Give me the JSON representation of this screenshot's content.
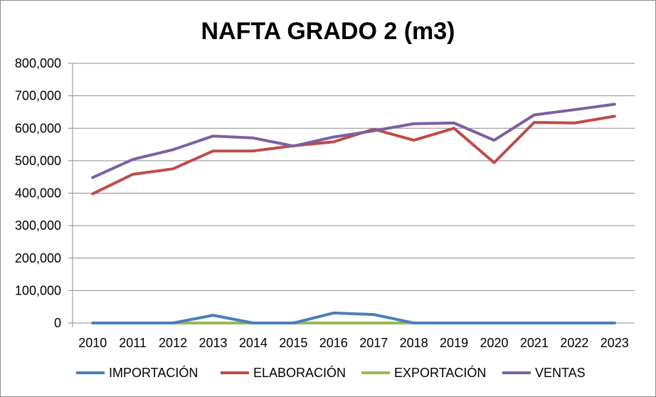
{
  "chart_data": {
    "type": "line",
    "title": "NAFTA GRADO 2 (m3)",
    "xlabel": "",
    "ylabel": "",
    "categories": [
      "2010",
      "2011",
      "2012",
      "2013",
      "2014",
      "2015",
      "2016",
      "2017",
      "2018",
      "2019",
      "2020",
      "2021",
      "2022",
      "2023"
    ],
    "ylim": [
      0,
      800000
    ],
    "yticks": [
      0,
      100000,
      200000,
      300000,
      400000,
      500000,
      600000,
      700000,
      800000
    ],
    "ytick_labels": [
      "0",
      "100,000",
      "200,000",
      "300,000",
      "400,000",
      "500,000",
      "600,000",
      "700,000",
      "800,000"
    ],
    "grid": true,
    "legend_position": "bottom",
    "series": [
      {
        "name": "IMPORTACIÓN",
        "color": "#4a7ebb",
        "values": [
          0,
          0,
          0,
          24000,
          0,
          0,
          31000,
          26000,
          0,
          0,
          0,
          0,
          0,
          0
        ]
      },
      {
        "name": "ELABORACIÓN",
        "color": "#be4b48",
        "values": [
          398000,
          458000,
          475000,
          530000,
          530000,
          546000,
          558000,
          597000,
          563000,
          600000,
          494000,
          618000,
          616000,
          637000
        ]
      },
      {
        "name": "EXPORTACIÓN",
        "color": "#98b954",
        "values": [
          0,
          0,
          0,
          0,
          0,
          0,
          0,
          0,
          0,
          0,
          0,
          0,
          0,
          0
        ]
      },
      {
        "name": "VENTAS",
        "color": "#7d5fa0",
        "values": [
          448000,
          504000,
          534000,
          576000,
          570000,
          545000,
          573000,
          592000,
          614000,
          616000,
          563000,
          641000,
          657000,
          674000
        ]
      }
    ]
  }
}
